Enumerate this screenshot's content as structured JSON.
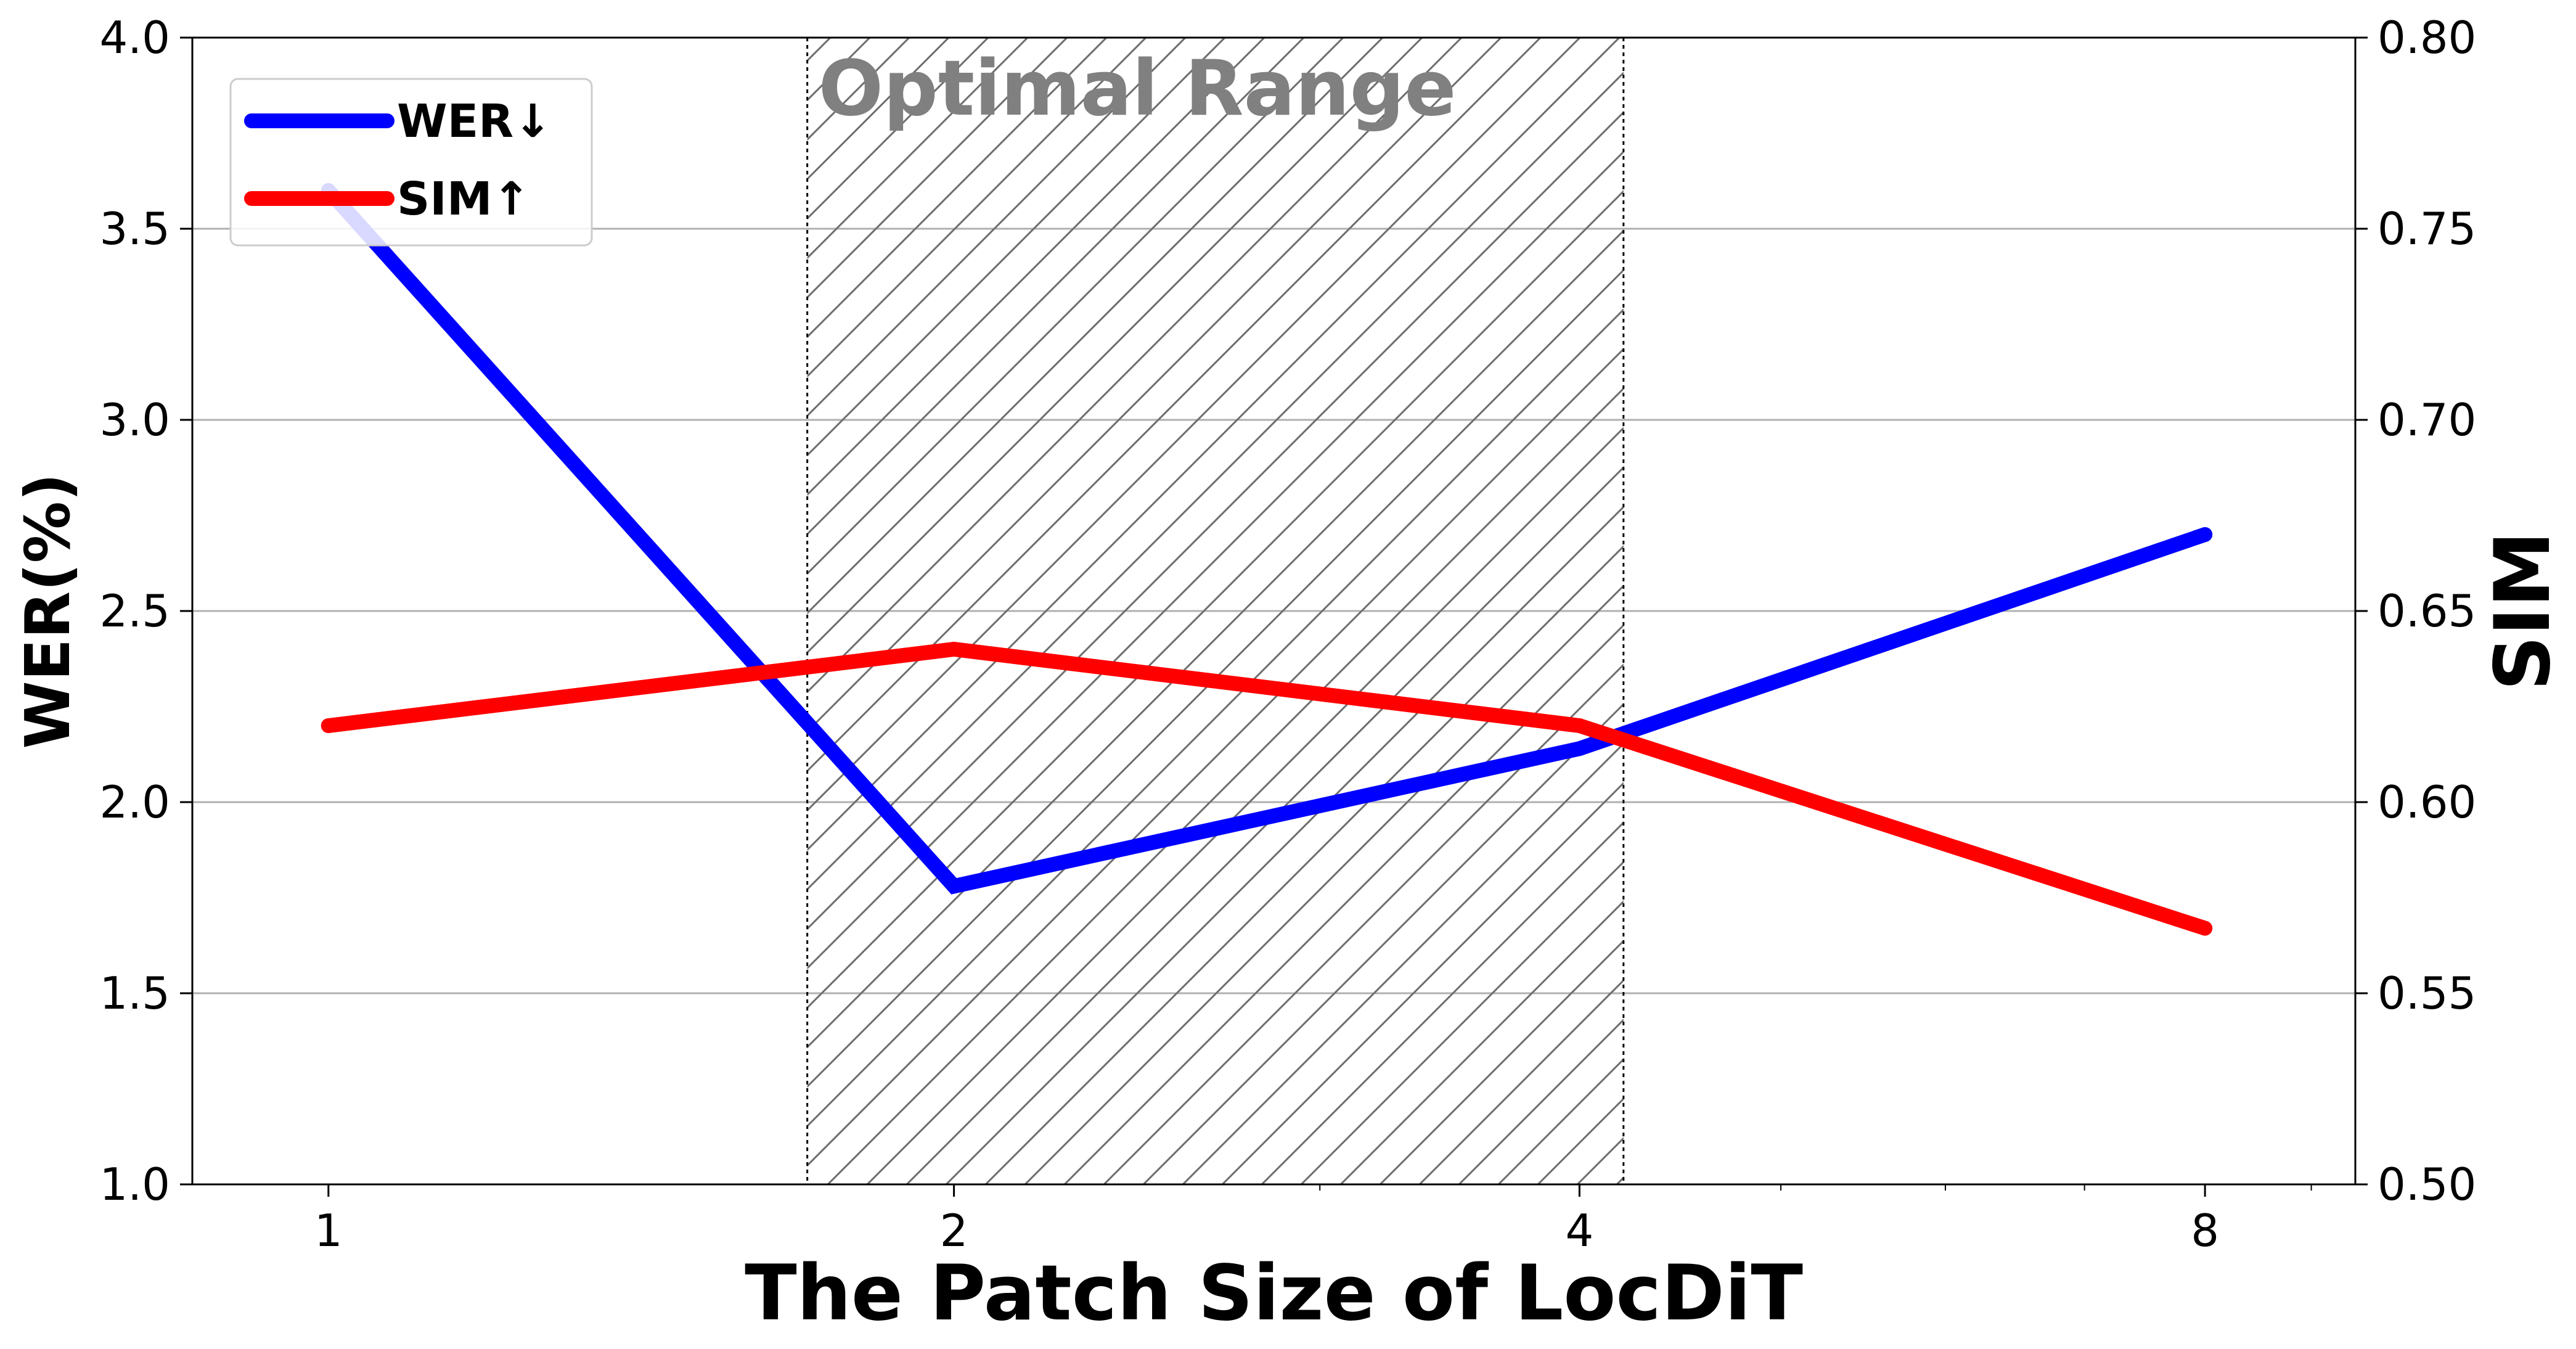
{
  "chart_data": {
    "type": "line",
    "x_scale": "log2",
    "x": [
      1,
      2,
      4,
      8
    ],
    "xticks": [
      "1",
      "2",
      "4",
      "8"
    ],
    "xlabel": "The Patch Size of LocDiT",
    "y_left": {
      "label": "WER(%)",
      "range": [
        1.0,
        4.0
      ],
      "ticks": [
        "1.0",
        "1.5",
        "2.0",
        "2.5",
        "3.0",
        "3.5",
        "4.0"
      ]
    },
    "y_right": {
      "label": "SIM",
      "range": [
        0.5,
        0.8
      ],
      "ticks": [
        "0.50",
        "0.55",
        "0.60",
        "0.65",
        "0.70",
        "0.75",
        "0.80"
      ]
    },
    "series": [
      {
        "name": "WER↓",
        "axis": "left",
        "color": "#0000ff",
        "values": [
          3.6,
          1.78,
          2.14,
          2.7
        ]
      },
      {
        "name": "SIM↑",
        "axis": "right",
        "color": "#ff0000",
        "values": [
          0.62,
          0.64,
          0.62,
          0.567
        ]
      }
    ],
    "highlight_region": {
      "label": "Optimal Range",
      "x_from": 1.7,
      "x_to": 4.2,
      "pattern": "diagonal-hatch"
    },
    "grid": "horizontal",
    "legend": "top-left"
  }
}
